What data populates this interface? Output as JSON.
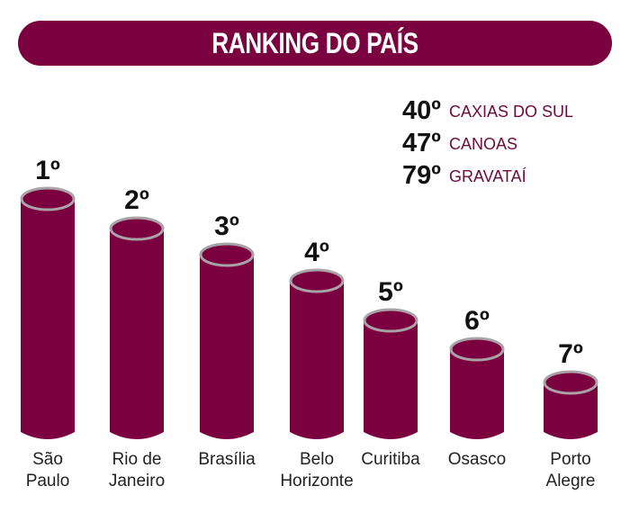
{
  "title": "RANKING DO PAÍS",
  "colors": {
    "bar": "#7a0040",
    "rim": "#a9a2a6",
    "title_bg": "#7a0040",
    "legend_text": "#6e0a3c"
  },
  "legend": [
    {
      "rank": "40º",
      "city": "CAXIAS DO SUL"
    },
    {
      "rank": "47º",
      "city": "CANOAS"
    },
    {
      "rank": "79º",
      "city": "GRAVATAÍ"
    }
  ],
  "chart_data": {
    "type": "bar",
    "title": "RANKING DO PAÍS",
    "categories": [
      [
        "São",
        "Paulo"
      ],
      [
        "Rio de",
        "Janeiro"
      ],
      [
        "Brasília"
      ],
      [
        "Belo",
        "Horizonte"
      ],
      [
        "Curitiba"
      ],
      [
        "Osasco"
      ],
      [
        "Porto",
        "Alegre"
      ]
    ],
    "values": [
      1,
      2,
      3,
      4,
      5,
      6,
      7
    ],
    "value_labels": [
      "1º",
      "2º",
      "3º",
      "4º",
      "5º",
      "6º",
      "7º"
    ],
    "xlabel": "",
    "ylabel": "",
    "grid": false
  }
}
